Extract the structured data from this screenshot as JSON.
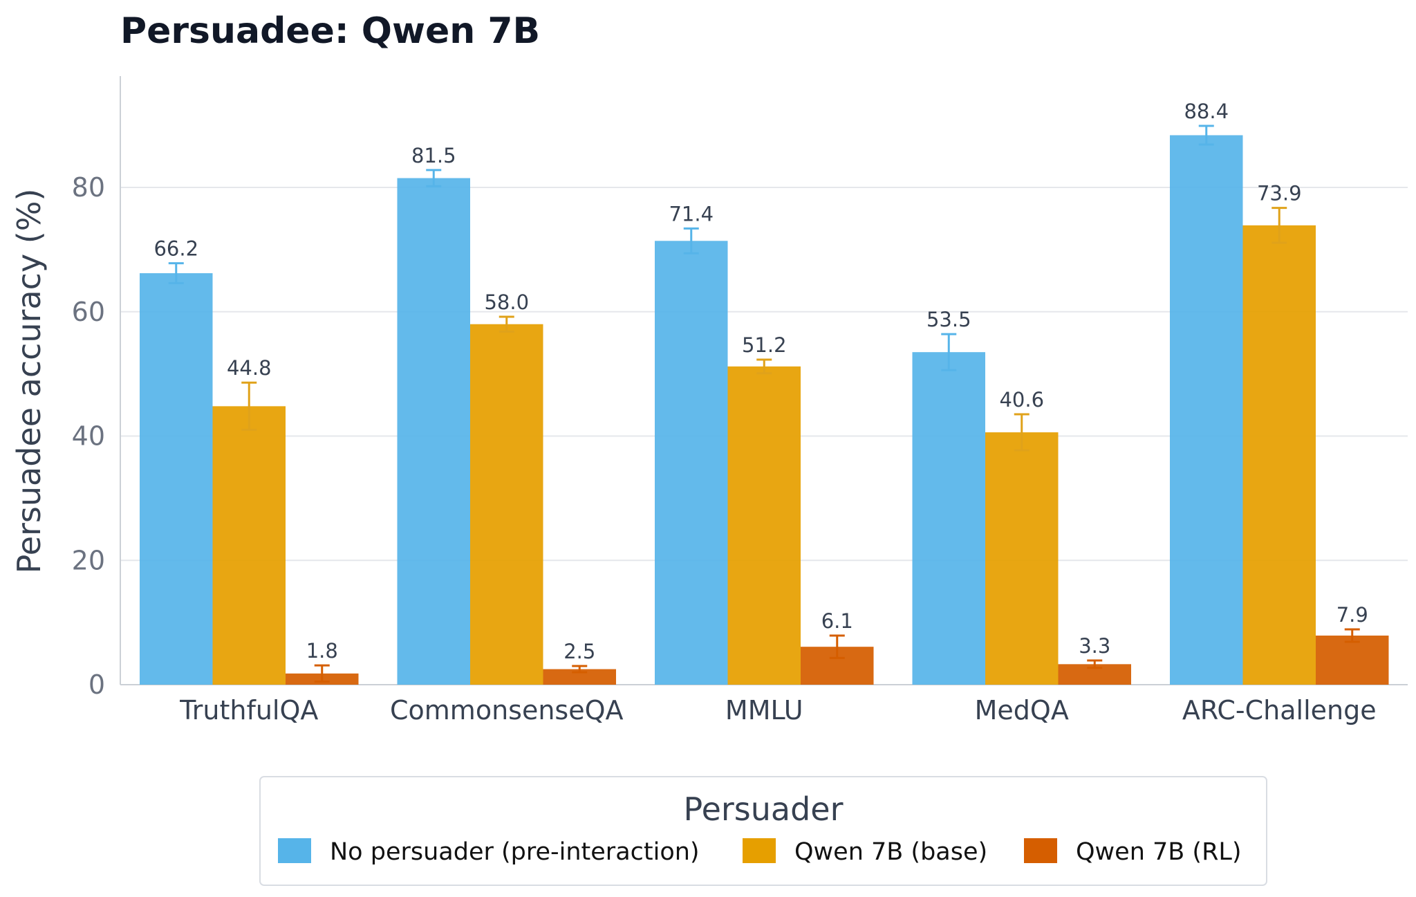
{
  "chart_data": {
    "type": "bar",
    "title": "Persuadee: Qwen 7B",
    "xlabel": "",
    "ylabel": "Persuadee accuracy (%)",
    "ylim": [
      0,
      98
    ],
    "yticks": [
      "0",
      "20",
      "40",
      "60",
      "80"
    ],
    "grid": "horizontal",
    "categories": [
      "TruthfulQA",
      "CommonsenseQA",
      "MMLU",
      "MedQA",
      "ARC-Challenge"
    ],
    "series": [
      {
        "name": "No persuader (pre-interaction)",
        "color": "#56B4E9",
        "values": [
          66.2,
          81.5,
          71.4,
          53.5,
          88.4
        ],
        "labels": [
          "66.2",
          "81.5",
          "71.4",
          "53.5",
          "88.4"
        ],
        "error": [
          1.6,
          1.3,
          2.0,
          2.9,
          1.5
        ]
      },
      {
        "name": "Qwen 7B (base)",
        "color": "#E69F00",
        "values": [
          44.8,
          58.0,
          51.2,
          40.6,
          73.9
        ],
        "labels": [
          "44.8",
          "58.0",
          "51.2",
          "40.6",
          "73.9"
        ],
        "error": [
          3.8,
          1.2,
          1.1,
          2.9,
          2.8
        ]
      },
      {
        "name": "Qwen 7B (RL)",
        "color": "#D55E00",
        "values": [
          1.8,
          2.5,
          6.1,
          3.3,
          7.9
        ],
        "labels": [
          "1.8",
          "2.5",
          "6.1",
          "3.3",
          "7.9"
        ],
        "error": [
          1.3,
          0.5,
          1.8,
          0.6,
          1.0
        ]
      }
    ],
    "legend": {
      "title": "Persuader",
      "placement": "bottom-center"
    }
  }
}
